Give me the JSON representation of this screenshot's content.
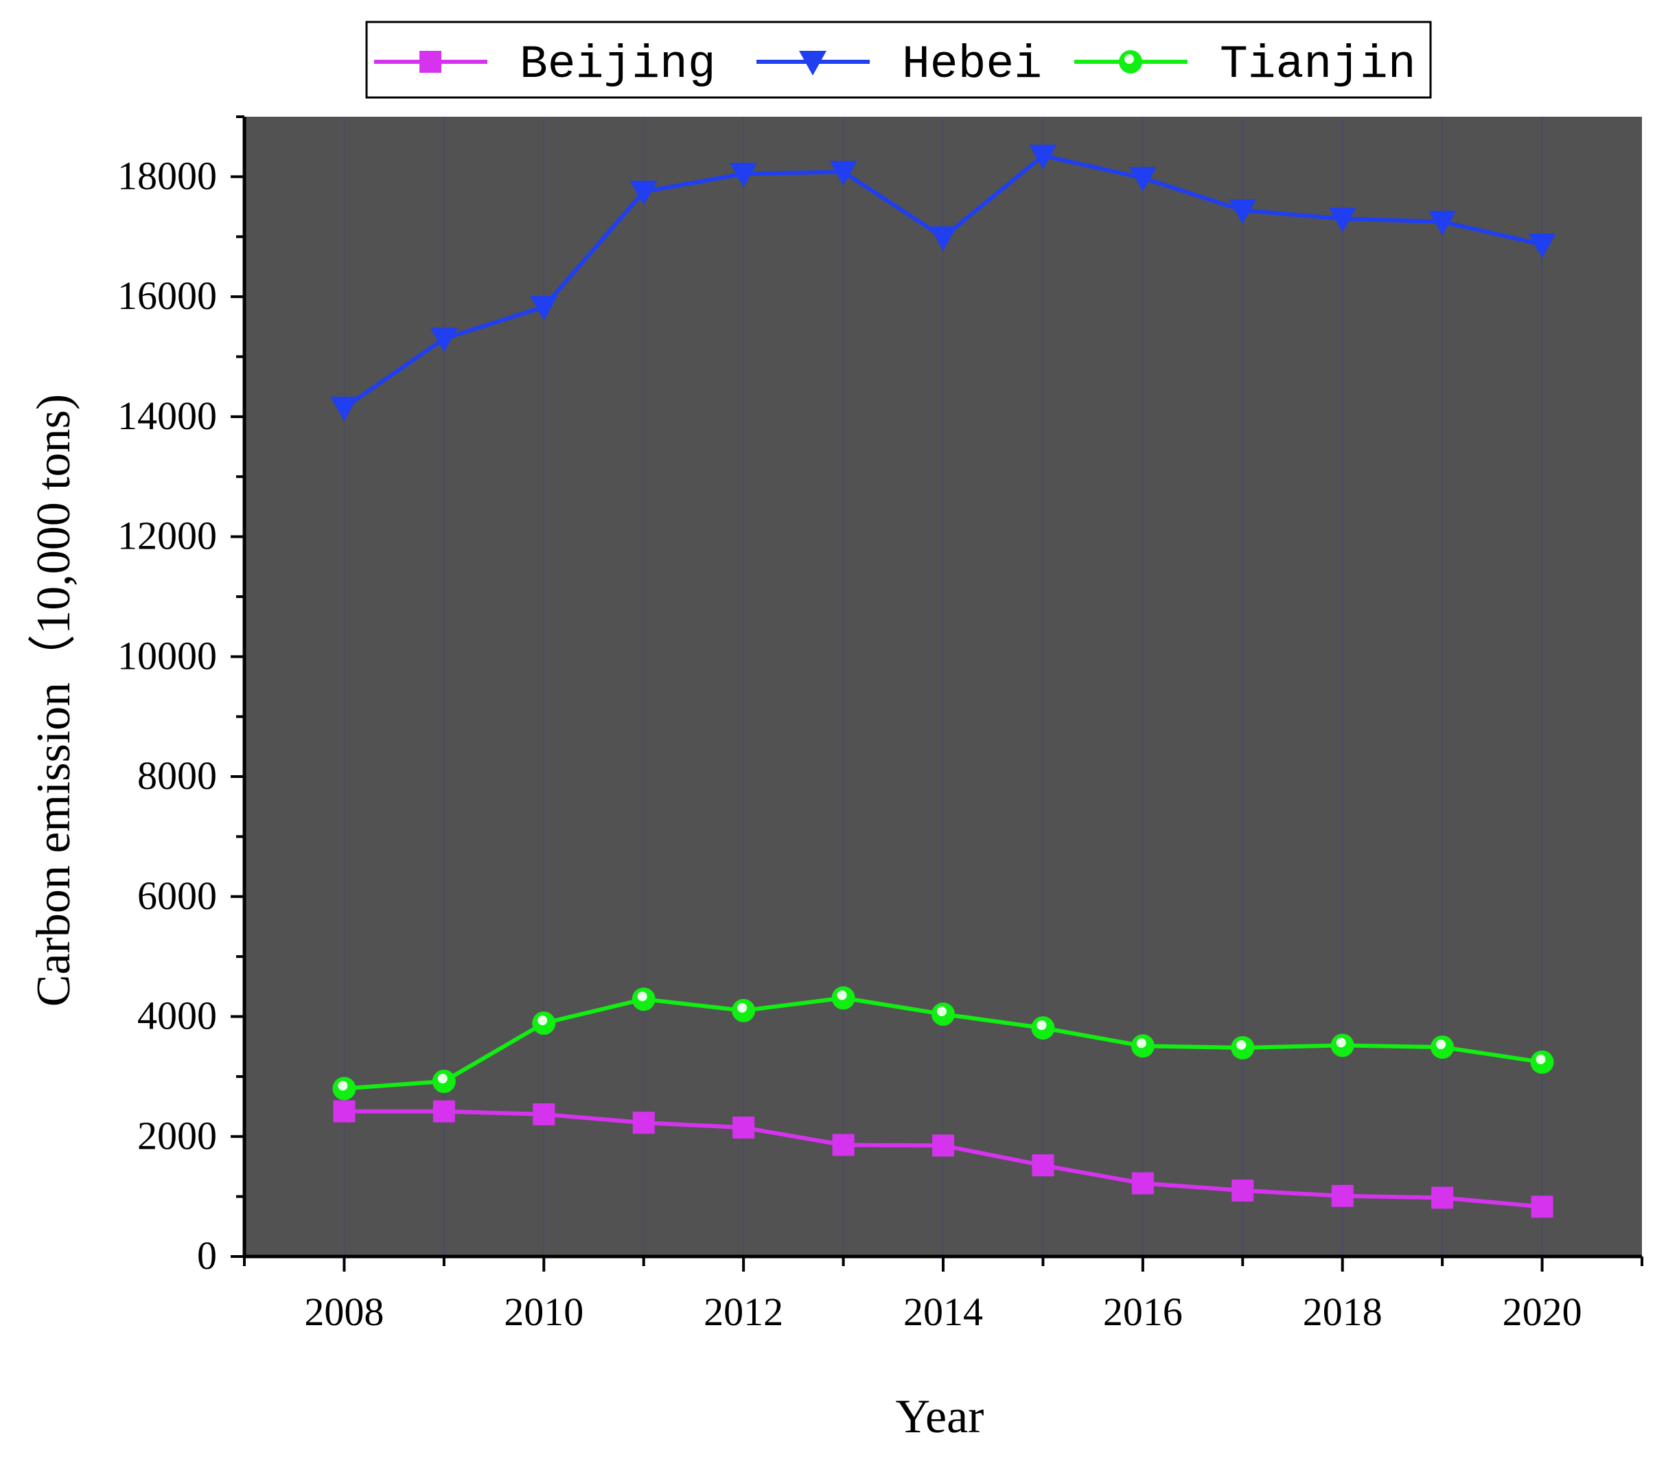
{
  "chart_data": {
    "type": "line",
    "title": "",
    "xlabel": "Year",
    "ylabel": "Carbon emission（10,000 tons)",
    "x": [
      2008,
      2009,
      2010,
      2011,
      2012,
      2013,
      2014,
      2015,
      2016,
      2017,
      2018,
      2019,
      2020
    ],
    "xlim": [
      2007,
      2021
    ],
    "ylim": [
      0,
      19000
    ],
    "xticks": [
      2008,
      2010,
      2012,
      2014,
      2016,
      2018,
      2020
    ],
    "yticks": [
      0,
      2000,
      4000,
      6000,
      8000,
      10000,
      12000,
      14000,
      16000,
      18000
    ],
    "legend_position": "top",
    "plot_background": "#525252",
    "grid": true,
    "series": [
      {
        "name": "Beijing",
        "color": "#d633ef",
        "marker": "square",
        "values": [
          2420,
          2420,
          2370,
          2230,
          2150,
          1860,
          1850,
          1520,
          1220,
          1100,
          1010,
          980,
          830
        ]
      },
      {
        "name": "Hebei",
        "color": "#1f3ff0",
        "marker": "triangle-down",
        "values": [
          14150,
          15300,
          15830,
          17750,
          18050,
          18080,
          16990,
          18350,
          17980,
          17440,
          17300,
          17250,
          16870
        ]
      },
      {
        "name": "Tianjin",
        "color": "#11ee11",
        "marker": "circle",
        "values": [
          2800,
          2920,
          3890,
          4290,
          4100,
          4310,
          4040,
          3810,
          3510,
          3480,
          3520,
          3490,
          3240
        ]
      }
    ]
  }
}
